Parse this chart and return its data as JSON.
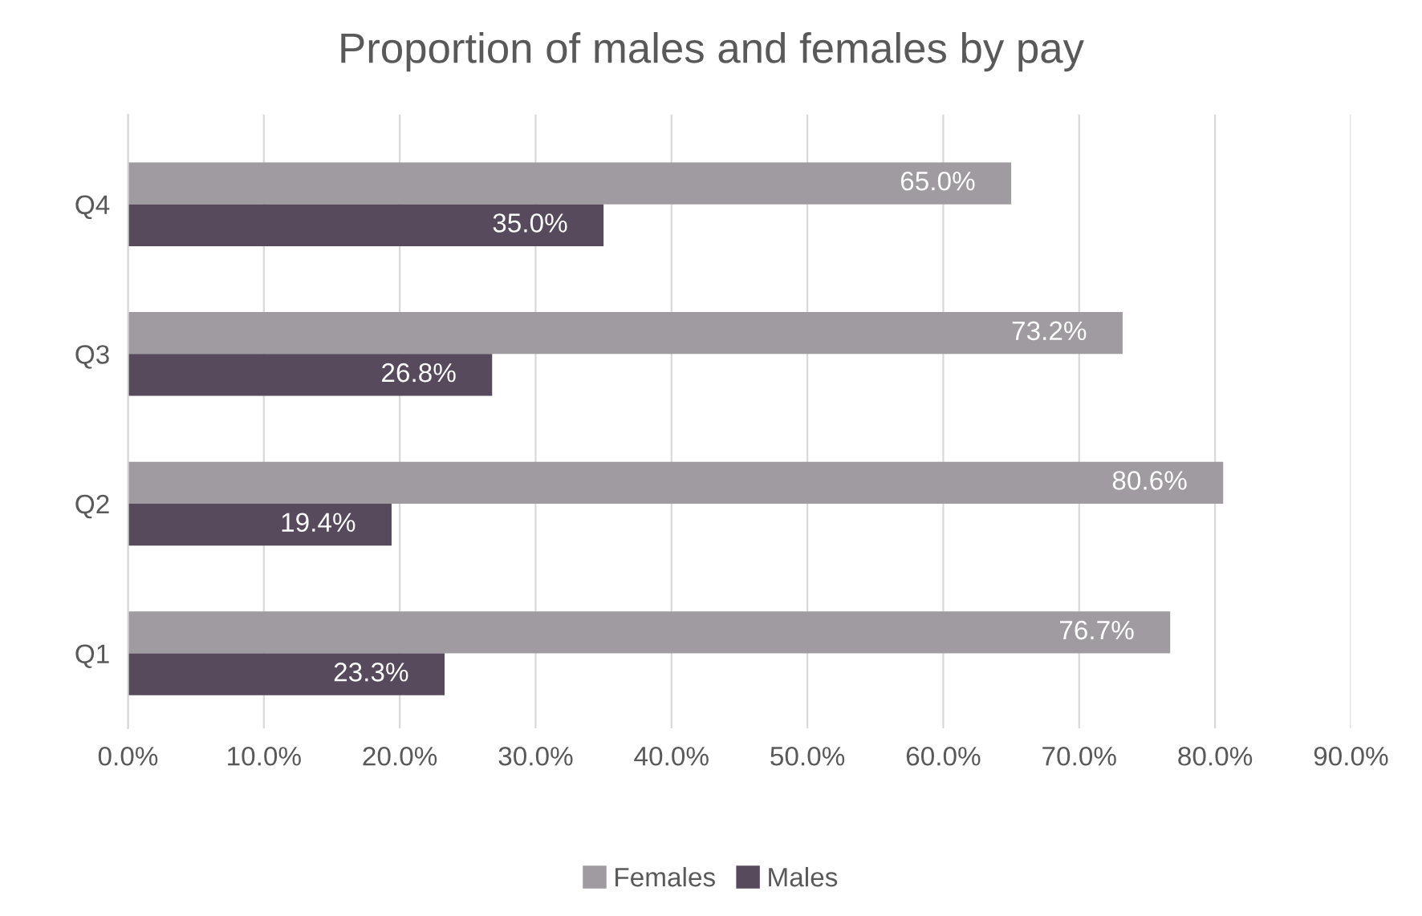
{
  "chart_data": {
    "type": "bar",
    "orientation": "horizontal",
    "title": "Proportion of males and females by pay",
    "categories": [
      "Q4",
      "Q3",
      "Q2",
      "Q1"
    ],
    "series": [
      {
        "name": "Females",
        "color": "#a09ba0",
        "values": [
          65.0,
          73.2,
          80.6,
          76.7
        ],
        "value_labels": [
          "65.0%",
          "73.2%",
          "80.6%",
          "76.7%"
        ]
      },
      {
        "name": "Males",
        "color": "#574a5c",
        "values": [
          35.0,
          26.8,
          19.4,
          23.3
        ],
        "value_labels": [
          "35.0%",
          "26.8%",
          "19.4%",
          "23.3%"
        ]
      }
    ],
    "xlim": [
      0,
      90
    ],
    "xticks": [
      {
        "value": 0,
        "label": "0.0%"
      },
      {
        "value": 10,
        "label": "10.0%"
      },
      {
        "value": 20,
        "label": "20.0%"
      },
      {
        "value": 30,
        "label": "30.0%"
      },
      {
        "value": 40,
        "label": "40.0%"
      },
      {
        "value": 50,
        "label": "50.0%"
      },
      {
        "value": 60,
        "label": "60.0%"
      },
      {
        "value": 70,
        "label": "70.0%"
      },
      {
        "value": 80,
        "label": "80.0%"
      },
      {
        "value": 90,
        "label": "90.0%"
      }
    ],
    "grid": "x",
    "legend": "bottom"
  }
}
